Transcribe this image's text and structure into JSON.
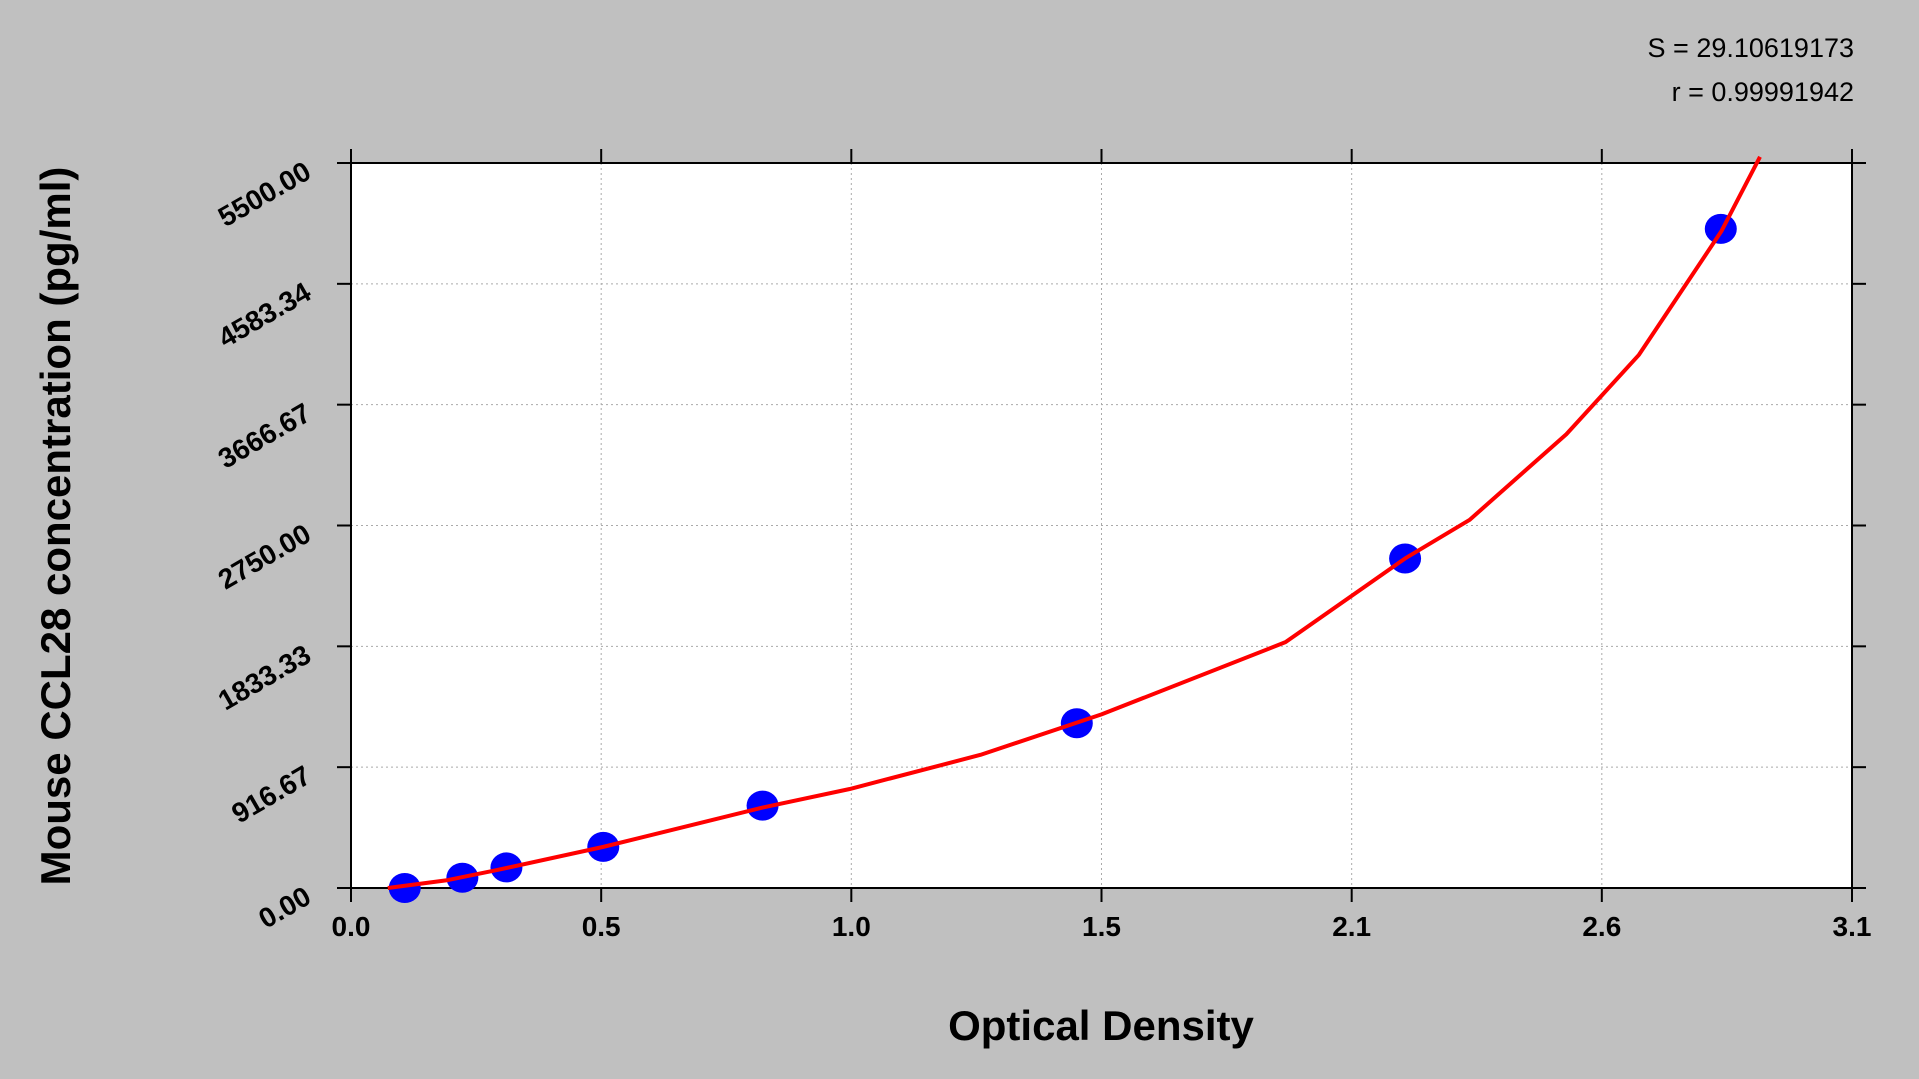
{
  "chart_data": {
    "type": "scatter",
    "x_label": "Optical Density",
    "y_label": "Mouse CCL28 concentration (pg/ml)",
    "annotations": [
      "S = 29.10619173",
      "r = 0.99991942"
    ],
    "xlim": [
      0,
      3.1
    ],
    "xticks": [
      {
        "value": 0,
        "label": "0.0"
      },
      {
        "value": 0.5167,
        "label": "0.5"
      },
      {
        "value": 1.0333,
        "label": "1.0"
      },
      {
        "value": 1.55,
        "label": "1.5"
      },
      {
        "value": 2.0667,
        "label": "2.1"
      },
      {
        "value": 2.5833,
        "label": "2.6"
      },
      3.1
    ],
    "ylim": [
      0,
      5500
    ],
    "yticks": [
      {
        "value": 0,
        "label": "0.00"
      },
      916.67,
      1833.33,
      {
        "value": 2750,
        "label": "2750.00"
      },
      3666.67,
      4583.34,
      {
        "value": 5500,
        "label": "5500.00"
      }
    ],
    "grid": true,
    "series": [
      {
        "style": "points",
        "color": "#0000ff",
        "x": [
          0.111,
          0.23,
          0.321,
          0.521,
          0.85,
          1.499,
          2.177,
          2.829
        ],
        "values": [
          0,
          78,
          156,
          312,
          625,
          1250,
          2500,
          5000
        ]
      },
      {
        "style": "line",
        "color": "#ff0000",
        "x": [
          0.076,
          0.2,
          0.3,
          0.521,
          0.85,
          1.03,
          1.3,
          1.55,
          1.93,
          2.177,
          2.31,
          2.51,
          2.66,
          2.83,
          2.91
        ],
        "values": [
          0,
          60,
          135,
          312,
          610,
          751,
          1010,
          1317,
          1865,
          2500,
          2792,
          3442,
          4045,
          4981,
          5547
        ]
      }
    ]
  }
}
